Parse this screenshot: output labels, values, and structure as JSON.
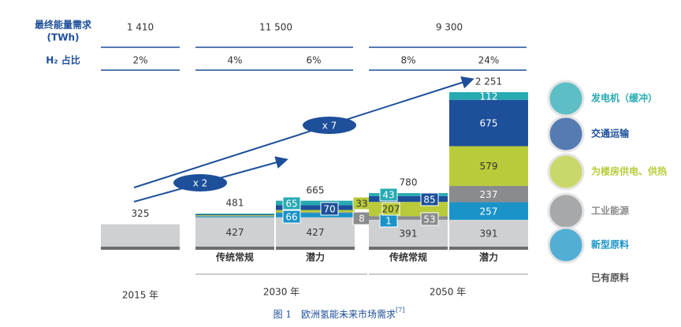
{
  "chart_data": {
    "type": "stacked-bar",
    "table": {
      "rows": [
        {
          "label": "最终能量需求",
          "unit": "(TWh)",
          "cells": [
            "1 410",
            "11 500",
            "9 300"
          ]
        },
        {
          "label": "H₂ 占比",
          "cells": [
            "2%",
            "4%",
            "6%",
            "8%",
            "24%"
          ]
        }
      ]
    },
    "groups": [
      "2015 年",
      "2030 年",
      "2050 年"
    ],
    "categories": [
      null,
      "传统常规",
      "潜力",
      "传统常规",
      "潜力"
    ],
    "ylim": [
      0,
      2400
    ],
    "series": [
      {
        "name": "已有原料",
        "color": "#cfd0d2",
        "values": [
          325,
          427,
          427,
          391,
          391
        ],
        "value_labels": [
          null,
          "427",
          "427",
          "391",
          "391"
        ]
      },
      {
        "name": "新型原料",
        "color": "#1a93c8",
        "values": [
          null,
          14,
          66,
          1,
          257
        ],
        "value_labels": [
          null,
          null,
          "66",
          "1",
          "257"
        ]
      },
      {
        "name": "工业能源",
        "color": "#8a8b8d",
        "values": [
          null,
          5,
          8,
          53,
          237
        ],
        "value_labels": [
          null,
          null,
          "8",
          "53",
          "237"
        ]
      },
      {
        "name": "为楼房供电、供热",
        "color": "#b9cb3a",
        "values": [
          null,
          12,
          33,
          207,
          579
        ],
        "value_labels": [
          null,
          null,
          "33",
          "207",
          "579"
        ]
      },
      {
        "name": "交通运输",
        "color": "#1d4f9a",
        "values": [
          null,
          12,
          70,
          85,
          675
        ],
        "value_labels": [
          null,
          null,
          "70",
          "85",
          "675"
        ]
      },
      {
        "name": "发电机（缓冲）",
        "color": "#27aab2",
        "values": [
          null,
          11,
          65,
          43,
          112
        ],
        "value_labels": [
          null,
          null,
          "65",
          "43",
          "112"
        ]
      }
    ],
    "totals": {
      "values": [
        325,
        481,
        665,
        780,
        2251
      ],
      "value_labels": [
        "325",
        "481",
        "665",
        "780",
        "2 251"
      ]
    },
    "annotations": [
      "x 2",
      "x 7"
    ],
    "caption": "图 1　欧洲氢能未来市场需求",
    "caption_ref": "[7]"
  }
}
